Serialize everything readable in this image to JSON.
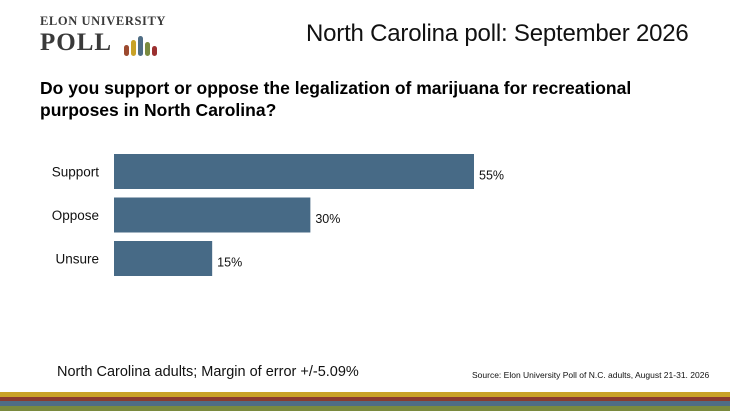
{
  "logo": {
    "line1": "ELON UNIVERSITY",
    "line2": "POLL",
    "bar_colors": [
      "#9c4a2f",
      "#c9a227",
      "#4f6d85",
      "#7a8a3e",
      "#9b2f2f"
    ]
  },
  "header": {
    "title": "North Carolina poll: September 2026"
  },
  "question": "Do you support or oppose the legalization of marijuana for recreational purposes in North Carolina?",
  "chart_data": {
    "type": "bar",
    "orientation": "horizontal",
    "categories": [
      "Support",
      "Oppose",
      "Unsure"
    ],
    "values": [
      55,
      30,
      15
    ],
    "data_labels": [
      "55%",
      "30%",
      "15%"
    ],
    "unit": "%",
    "xlim": [
      0,
      100
    ],
    "bar_color": "#476a86",
    "grid": false,
    "legend": "none"
  },
  "footer": {
    "note": "North Carolina adults; Margin of error +/-5.09%",
    "source": "Source: Elon University Poll of N.C. adults, August 21-31. 2026"
  },
  "colors": {
    "stripes": [
      "#c9a227",
      "#8a3b2f",
      "#4f6d85",
      "#7a8a3e"
    ]
  }
}
